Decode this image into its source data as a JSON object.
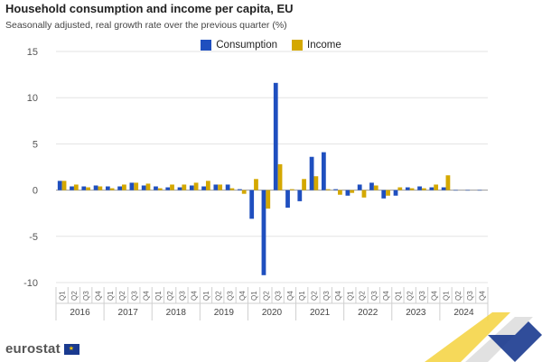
{
  "header": {
    "title": "Household consumption and income per capita, EU",
    "subtitle": "Seasonally adjusted, real growth rate over the previous quarter (%)"
  },
  "logo": {
    "text": "eurostat"
  },
  "colors": {
    "consumption": "#1f4fbf",
    "income": "#d4a800",
    "grid": "#e3e3e3",
    "axis": "#9a9a9a"
  },
  "chart_data": {
    "type": "bar",
    "title": "Household consumption and income per capita, EU",
    "subtitle": "Seasonally adjusted, real growth rate over the previous quarter (%)",
    "ylim": [
      -10,
      15
    ],
    "yticks": [
      -10,
      -5,
      0,
      5,
      10,
      15
    ],
    "grid": true,
    "legend": "top-center",
    "quarter_labels": [
      "Q1",
      "Q2",
      "Q3",
      "Q4"
    ],
    "years": [
      "2016",
      "2017",
      "2018",
      "2019",
      "2020",
      "2021",
      "2022",
      "2023",
      "2024"
    ],
    "series": [
      {
        "name": "Consumption",
        "values": [
          1.0,
          0.4,
          0.4,
          0.5,
          0.4,
          0.4,
          0.8,
          0.5,
          0.4,
          0.3,
          0.3,
          0.5,
          0.4,
          0.6,
          0.6,
          0.1,
          -3.1,
          -9.2,
          11.6,
          -1.9,
          -1.2,
          3.6,
          4.1,
          0.1,
          -0.6,
          0.6,
          0.8,
          -0.9,
          -0.6,
          0.3,
          0.4,
          0.3,
          0.3,
          0.0,
          0.0,
          0.0
        ]
      },
      {
        "name": "Income",
        "values": [
          1.0,
          0.6,
          0.3,
          0.4,
          0.2,
          0.6,
          0.8,
          0.7,
          0.2,
          0.6,
          0.6,
          0.8,
          1.0,
          0.6,
          0.2,
          -0.4,
          1.2,
          -2.0,
          2.8,
          0.1,
          1.2,
          1.5,
          0.1,
          -0.5,
          -0.3,
          -0.8,
          0.5,
          -0.6,
          0.3,
          0.2,
          0.2,
          0.6,
          1.6,
          null,
          null,
          null
        ]
      }
    ]
  }
}
